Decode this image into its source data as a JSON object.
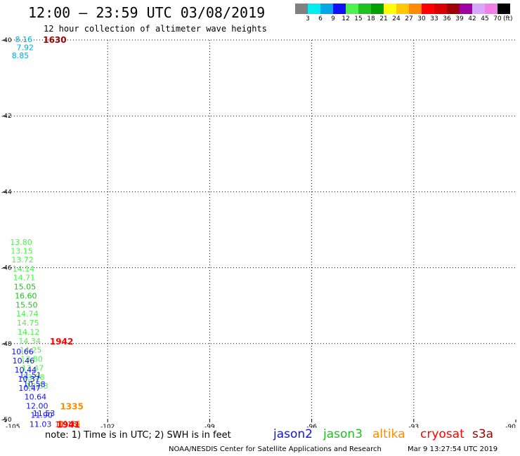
{
  "header": {
    "title": "12:00 – 23:59 UTC 03/08/2019",
    "subtitle": "12 hour collection of altimeter wave heights"
  },
  "legend": {
    "colors": [
      "#808080",
      "#00eeee",
      "#00a8e8",
      "#1010ff",
      "#50f050",
      "#20c020",
      "#00a000",
      "#ffff00",
      "#ffc800",
      "#ff8c00",
      "#ff0000",
      "#d80000",
      "#a00000",
      "#a000a0",
      "#d8a8f8",
      "#f080e8",
      "#000000"
    ],
    "labels": [
      "3",
      "6",
      "9",
      "12",
      "15",
      "18",
      "21",
      "24",
      "27",
      "30",
      "33",
      "36",
      "39",
      "42",
      "45",
      "70"
    ],
    "unit": "(ft)"
  },
  "chart_data": {
    "type": "scatter",
    "title": "12:00 – 23:59 UTC 03/08/2019",
    "subtitle": "12 hour collection of altimeter wave heights",
    "xlim": [
      -105,
      -90
    ],
    "ylim": [
      -50,
      -40
    ],
    "x_ticks": [
      -105,
      -102,
      -99,
      -96,
      -93,
      -90
    ],
    "y_ticks": [
      -40,
      -42,
      -44,
      -46,
      -48,
      -50
    ],
    "x_tick_labels": [
      "-105",
      "-102",
      "-99",
      "-96",
      "-93",
      "-90"
    ],
    "y_tick_labels": [
      "-40",
      "-42",
      "-44",
      "-46",
      "-48",
      "-50"
    ],
    "grid": true,
    "points": [
      {
        "x": -104.72,
        "y": -39.98,
        "label": "8.16",
        "color": "#00a8e8"
      },
      {
        "x": -104.68,
        "y": -40.19,
        "label": "7.92",
        "color": "#00a8e8"
      },
      {
        "x": -104.82,
        "y": -40.41,
        "label": "8.85",
        "color": "#00a8e8"
      },
      {
        "x": -104.87,
        "y": -45.32,
        "label": "13.80",
        "color": "#50f050"
      },
      {
        "x": -104.85,
        "y": -45.55,
        "label": "13.15",
        "color": "#50f050"
      },
      {
        "x": -104.83,
        "y": -45.79,
        "label": "13.72",
        "color": "#50f050"
      },
      {
        "x": -104.8,
        "y": -46.03,
        "label": "14.14",
        "color": "#50f050"
      },
      {
        "x": -104.78,
        "y": -46.26,
        "label": "14.71",
        "color": "#50f050"
      },
      {
        "x": -104.76,
        "y": -46.5,
        "label": "15.05",
        "color": "#20c020"
      },
      {
        "x": -104.73,
        "y": -46.74,
        "label": "16.60",
        "color": "#20c020"
      },
      {
        "x": -104.71,
        "y": -46.98,
        "label": "15.50",
        "color": "#20c020"
      },
      {
        "x": -104.69,
        "y": -47.21,
        "label": "14.74",
        "color": "#50f050"
      },
      {
        "x": -104.67,
        "y": -47.45,
        "label": "14.75",
        "color": "#50f050"
      },
      {
        "x": -104.65,
        "y": -47.69,
        "label": "14.12",
        "color": "#50f050"
      },
      {
        "x": -104.62,
        "y": -47.93,
        "label": "14.34",
        "color": "#50f050"
      },
      {
        "x": -104.59,
        "y": -48.16,
        "label": "14.25",
        "color": "#50f050"
      },
      {
        "x": -104.56,
        "y": -48.4,
        "label": "13.80",
        "color": "#50f050"
      },
      {
        "x": -104.53,
        "y": -48.64,
        "label": "13.47",
        "color": "#50f050"
      },
      {
        "x": -104.5,
        "y": -48.88,
        "label": "13.28",
        "color": "#50f050"
      },
      {
        "x": -104.4,
        "y": -49.11,
        "label": "13.58",
        "color": "#50f050"
      },
      {
        "x": -104.83,
        "y": -48.21,
        "label": "10.66",
        "color": "#1010ff"
      },
      {
        "x": -104.8,
        "y": -48.45,
        "label": "10.46",
        "color": "#1010ff"
      },
      {
        "x": -104.74,
        "y": -48.69,
        "label": "10.44",
        "color": "#1010ff"
      },
      {
        "x": -104.6,
        "y": -48.83,
        "label": "11.51",
        "color": "#1010ff"
      },
      {
        "x": -104.64,
        "y": -48.93,
        "label": "10.37",
        "color": "#1010ff"
      },
      {
        "x": -104.48,
        "y": -49.07,
        "label": "10.58",
        "color": "#1010ff"
      },
      {
        "x": -104.62,
        "y": -49.17,
        "label": "10.47",
        "color": "#1010ff"
      },
      {
        "x": -104.45,
        "y": -49.4,
        "label": "10.64",
        "color": "#1010ff"
      },
      {
        "x": -104.4,
        "y": -49.64,
        "label": "12.00",
        "color": "#1010ff"
      },
      {
        "x": -104.2,
        "y": -49.83,
        "label": "11.53",
        "color": "#1010ff"
      },
      {
        "x": -104.27,
        "y": -49.88,
        "label": "11.90",
        "color": "#1010ff"
      },
      {
        "x": -104.3,
        "y": -50.12,
        "label": "11.03",
        "color": "#1010ff"
      },
      {
        "x": -103.45,
        "y": -50.1,
        "label": "11.14",
        "color": "#ff8c00"
      },
      {
        "x": -103.55,
        "y": -50.12,
        "label": "11.16",
        "color": "#ff0000"
      }
    ],
    "time_labels": [
      {
        "x": -103.9,
        "y": -39.98,
        "label": "1630",
        "color": "#a00000"
      },
      {
        "x": -103.7,
        "y": -47.93,
        "label": "1942",
        "color": "#ff0000"
      },
      {
        "x": -103.4,
        "y": -49.64,
        "label": "1335",
        "color": "#ff8c00"
      },
      {
        "x": -103.5,
        "y": -50.12,
        "label": "1941",
        "color": "#ff0000"
      }
    ]
  },
  "footer": {
    "note": "note: 1) Time is in UTC; 2) SWH is in feet",
    "satellites": [
      {
        "name": "jason2",
        "color": "#1010ff"
      },
      {
        "name": "jason3",
        "color": "#20c020"
      },
      {
        "name": "altika",
        "color": "#ff8c00"
      },
      {
        "name": "cryosat",
        "color": "#ff0000"
      },
      {
        "name": "s3a",
        "color": "#a00000"
      }
    ],
    "credit": "NOAA/NESDIS Center for Satellite Applications and Research",
    "timestamp": "Mar  9 13:27:54 UTC 2019"
  }
}
